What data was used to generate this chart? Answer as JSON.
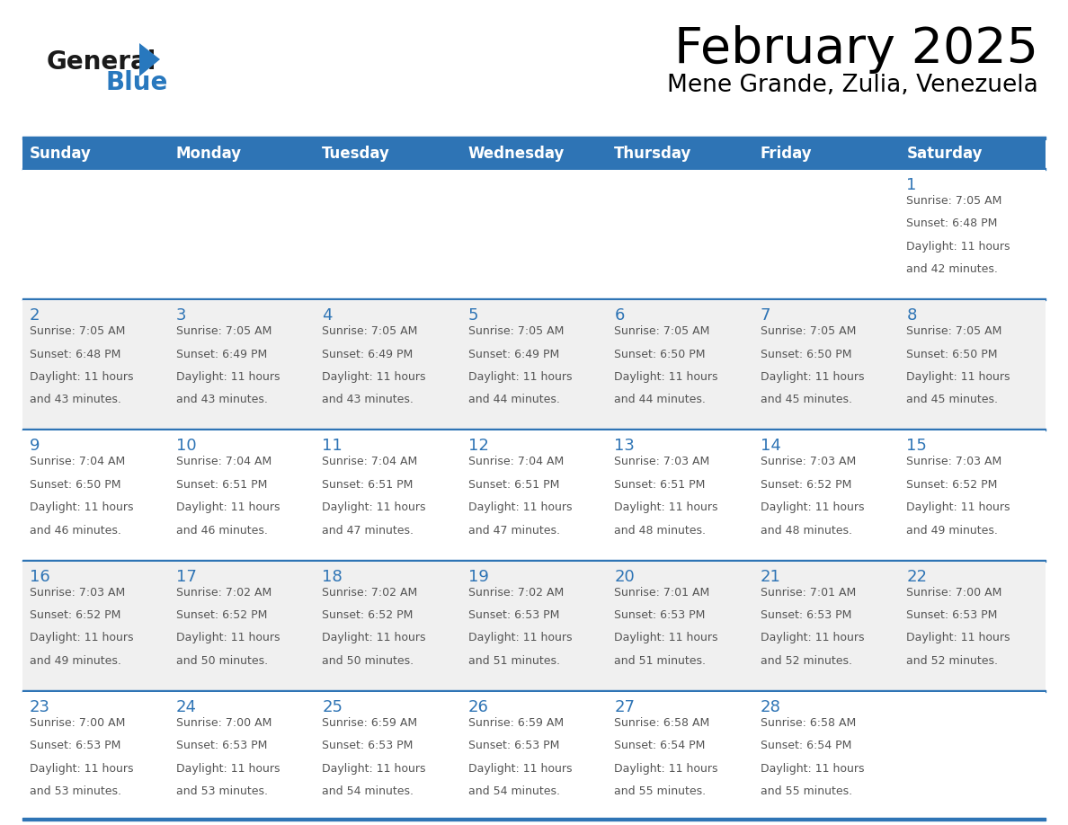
{
  "title": "February 2025",
  "subtitle": "Mene Grande, Zulia, Venezuela",
  "days_of_week": [
    "Sunday",
    "Monday",
    "Tuesday",
    "Wednesday",
    "Thursday",
    "Friday",
    "Saturday"
  ],
  "header_bg": "#2E74B5",
  "header_text": "#FFFFFF",
  "cell_bg_even": "#FFFFFF",
  "cell_bg_odd": "#F0F0F0",
  "day_number_color": "#2E74B5",
  "text_color": "#555555",
  "line_color": "#2E74B5",
  "title_color": "#000000",
  "logo_black": "#1a1a1a",
  "logo_blue": "#2878BE",
  "calendar": [
    [
      null,
      null,
      null,
      null,
      null,
      null,
      1
    ],
    [
      2,
      3,
      4,
      5,
      6,
      7,
      8
    ],
    [
      9,
      10,
      11,
      12,
      13,
      14,
      15
    ],
    [
      16,
      17,
      18,
      19,
      20,
      21,
      22
    ],
    [
      23,
      24,
      25,
      26,
      27,
      28,
      null
    ]
  ],
  "sunrise_data": {
    "1": {
      "sunrise": "7:05 AM",
      "sunset": "6:48 PM",
      "hours": "11 hours",
      "minutes": "and 42 minutes."
    },
    "2": {
      "sunrise": "7:05 AM",
      "sunset": "6:48 PM",
      "hours": "11 hours",
      "minutes": "and 43 minutes."
    },
    "3": {
      "sunrise": "7:05 AM",
      "sunset": "6:49 PM",
      "hours": "11 hours",
      "minutes": "and 43 minutes."
    },
    "4": {
      "sunrise": "7:05 AM",
      "sunset": "6:49 PM",
      "hours": "11 hours",
      "minutes": "and 43 minutes."
    },
    "5": {
      "sunrise": "7:05 AM",
      "sunset": "6:49 PM",
      "hours": "11 hours",
      "minutes": "and 44 minutes."
    },
    "6": {
      "sunrise": "7:05 AM",
      "sunset": "6:50 PM",
      "hours": "11 hours",
      "minutes": "and 44 minutes."
    },
    "7": {
      "sunrise": "7:05 AM",
      "sunset": "6:50 PM",
      "hours": "11 hours",
      "minutes": "and 45 minutes."
    },
    "8": {
      "sunrise": "7:05 AM",
      "sunset": "6:50 PM",
      "hours": "11 hours",
      "minutes": "and 45 minutes."
    },
    "9": {
      "sunrise": "7:04 AM",
      "sunset": "6:50 PM",
      "hours": "11 hours",
      "minutes": "and 46 minutes."
    },
    "10": {
      "sunrise": "7:04 AM",
      "sunset": "6:51 PM",
      "hours": "11 hours",
      "minutes": "and 46 minutes."
    },
    "11": {
      "sunrise": "7:04 AM",
      "sunset": "6:51 PM",
      "hours": "11 hours",
      "minutes": "and 47 minutes."
    },
    "12": {
      "sunrise": "7:04 AM",
      "sunset": "6:51 PM",
      "hours": "11 hours",
      "minutes": "and 47 minutes."
    },
    "13": {
      "sunrise": "7:03 AM",
      "sunset": "6:51 PM",
      "hours": "11 hours",
      "minutes": "and 48 minutes."
    },
    "14": {
      "sunrise": "7:03 AM",
      "sunset": "6:52 PM",
      "hours": "11 hours",
      "minutes": "and 48 minutes."
    },
    "15": {
      "sunrise": "7:03 AM",
      "sunset": "6:52 PM",
      "hours": "11 hours",
      "minutes": "and 49 minutes."
    },
    "16": {
      "sunrise": "7:03 AM",
      "sunset": "6:52 PM",
      "hours": "11 hours",
      "minutes": "and 49 minutes."
    },
    "17": {
      "sunrise": "7:02 AM",
      "sunset": "6:52 PM",
      "hours": "11 hours",
      "minutes": "and 50 minutes."
    },
    "18": {
      "sunrise": "7:02 AM",
      "sunset": "6:52 PM",
      "hours": "11 hours",
      "minutes": "and 50 minutes."
    },
    "19": {
      "sunrise": "7:02 AM",
      "sunset": "6:53 PM",
      "hours": "11 hours",
      "minutes": "and 51 minutes."
    },
    "20": {
      "sunrise": "7:01 AM",
      "sunset": "6:53 PM",
      "hours": "11 hours",
      "minutes": "and 51 minutes."
    },
    "21": {
      "sunrise": "7:01 AM",
      "sunset": "6:53 PM",
      "hours": "11 hours",
      "minutes": "and 52 minutes."
    },
    "22": {
      "sunrise": "7:00 AM",
      "sunset": "6:53 PM",
      "hours": "11 hours",
      "minutes": "and 52 minutes."
    },
    "23": {
      "sunrise": "7:00 AM",
      "sunset": "6:53 PM",
      "hours": "11 hours",
      "minutes": "and 53 minutes."
    },
    "24": {
      "sunrise": "7:00 AM",
      "sunset": "6:53 PM",
      "hours": "11 hours",
      "minutes": "and 53 minutes."
    },
    "25": {
      "sunrise": "6:59 AM",
      "sunset": "6:53 PM",
      "hours": "11 hours",
      "minutes": "and 54 minutes."
    },
    "26": {
      "sunrise": "6:59 AM",
      "sunset": "6:53 PM",
      "hours": "11 hours",
      "minutes": "and 54 minutes."
    },
    "27": {
      "sunrise": "6:58 AM",
      "sunset": "6:54 PM",
      "hours": "11 hours",
      "minutes": "and 55 minutes."
    },
    "28": {
      "sunrise": "6:58 AM",
      "sunset": "6:54 PM",
      "hours": "11 hours",
      "minutes": "and 55 minutes."
    }
  }
}
